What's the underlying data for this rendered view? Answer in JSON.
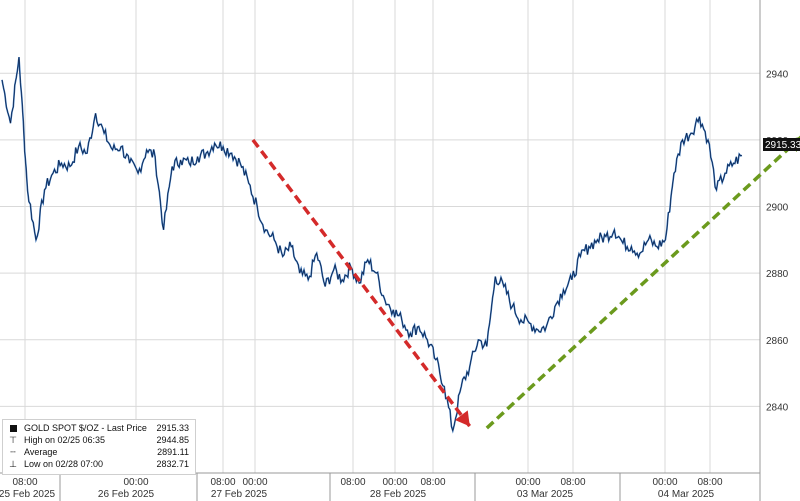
{
  "chart_data": {
    "type": "line",
    "title": "",
    "xlabel": "",
    "ylabel": "",
    "ylim": [
      2820,
      2962
    ],
    "y_ticks": [
      2840,
      2860,
      2880,
      2900,
      2920,
      2940
    ],
    "x_date_labels": [
      "25 Feb 2025",
      "26 Feb 2025",
      "27 Feb 2025",
      "28 Feb 2025",
      "03 Mar 2025",
      "04 Mar 2025"
    ],
    "x_time_labels": [
      "08:00",
      "00:00",
      "08:00",
      "00:00",
      "08:00",
      "00:00",
      "08:00",
      "00:00",
      "08:00",
      "00:00",
      "08:00"
    ],
    "last_price_tag": "2915.33",
    "series": [
      {
        "name": "GOLD SPOT $/OZ - Last Price",
        "color": "#2f6db5",
        "values": [
          2938,
          2925,
          2944.85,
          2905,
          2890,
          2905,
          2910,
          2913,
          2912,
          2918,
          2916,
          2928,
          2922,
          2917,
          2918,
          2913,
          2910,
          2917,
          2915,
          2893,
          2912,
          2914,
          2913,
          2915,
          2916,
          2919,
          2918,
          2916,
          2913,
          2907,
          2900,
          2893,
          2890,
          2885,
          2888,
          2880,
          2878,
          2886,
          2876,
          2881,
          2878,
          2882,
          2877,
          2884,
          2880,
          2872,
          2869,
          2866,
          2862,
          2864,
          2860,
          2854,
          2846,
          2832.71,
          2846,
          2852,
          2860,
          2858,
          2879,
          2876,
          2870,
          2866,
          2865,
          2863,
          2864,
          2870,
          2875,
          2878,
          2885,
          2888,
          2890,
          2891,
          2893,
          2889,
          2888,
          2886,
          2890,
          2888,
          2890,
          2910,
          2920,
          2922,
          2927,
          2920,
          2905,
          2910,
          2913,
          2915.33
        ]
      }
    ],
    "annotations": [
      {
        "type": "dashed-arrow",
        "color": "#d42a2a",
        "from": [
          29.5,
          2920
        ],
        "to": [
          55,
          2834
        ]
      },
      {
        "type": "dashed-arrow",
        "color": "#6b9a1d",
        "from": [
          57,
          2833.5
        ],
        "to": [
          94,
          2921
        ]
      }
    ],
    "legend": {
      "placement": "bottom-left",
      "items": [
        {
          "label": "GOLD SPOT $/OZ - Last Price",
          "value": "2915.33",
          "symbol": "square-icon"
        },
        {
          "label": "High on 02/25 06:35",
          "value": "2944.85",
          "symbol": "high-marker-icon"
        },
        {
          "label": "Average",
          "value": "2891.11",
          "symbol": "average-line-icon"
        },
        {
          "label": "Low on 02/28 07:00",
          "value": "2832.71",
          "symbol": "low-marker-icon"
        }
      ]
    }
  }
}
